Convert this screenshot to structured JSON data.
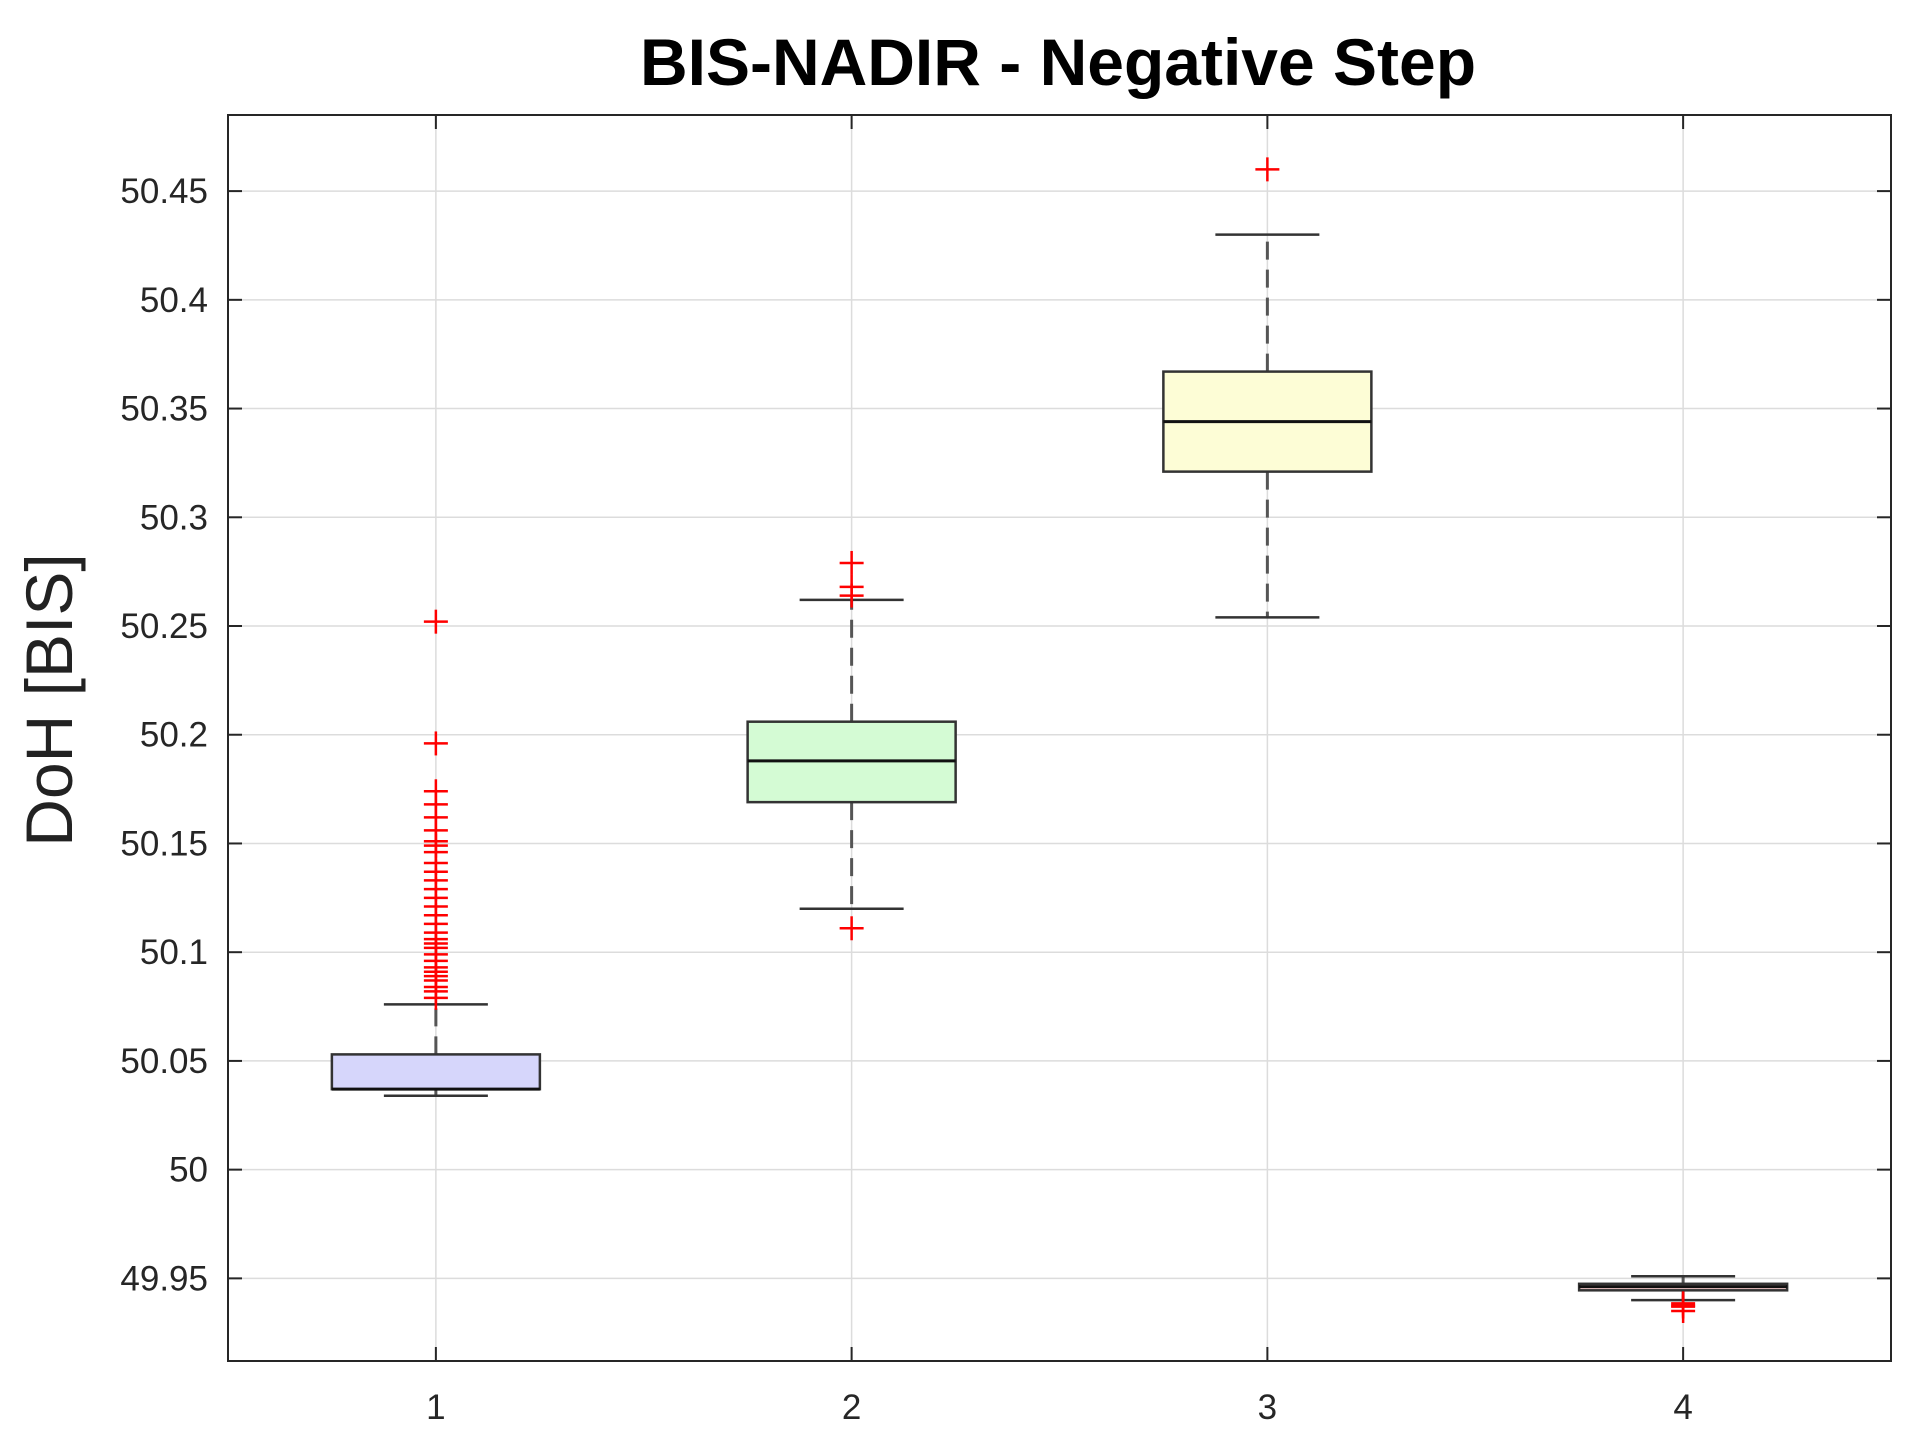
{
  "chart_data": {
    "type": "box",
    "title": "BIS-NADIR - Negative Step",
    "xlabel": "",
    "ylabel": "DoH [BIS]",
    "categories": [
      "1",
      "2",
      "3",
      "4"
    ],
    "ylim": [
      49.912,
      50.485
    ],
    "yticks": [
      49.95,
      50,
      50.05,
      50.1,
      50.15,
      50.2,
      50.25,
      50.3,
      50.35,
      50.4,
      50.45
    ],
    "ytick_labels": [
      "49.95",
      "50",
      "50.05",
      "50.1",
      "50.15",
      "50.2",
      "50.25",
      "50.3",
      "50.35",
      "50.4",
      "50.45"
    ],
    "grid": true,
    "boxes": [
      {
        "category": "1",
        "fill": "#d6d6fb",
        "q1": 50.037,
        "median": 50.037,
        "q3": 50.053,
        "whisker_low": 50.034,
        "whisker_high": 50.076,
        "outliers": [
          50.252,
          50.196,
          50.174,
          50.168,
          50.162,
          50.156,
          50.151,
          50.149,
          50.146,
          50.141,
          50.137,
          50.133,
          50.129,
          50.125,
          50.121,
          50.117,
          50.113,
          50.109,
          50.106,
          50.104,
          50.102,
          50.099,
          50.096,
          50.093,
          50.091,
          50.089,
          50.087,
          50.084,
          50.082,
          50.079
        ]
      },
      {
        "category": "2",
        "fill": "#d4fbd4",
        "q1": 50.169,
        "median": 50.188,
        "q3": 50.206,
        "whisker_low": 50.12,
        "whisker_high": 50.262,
        "outliers": [
          50.279,
          50.268,
          50.264,
          50.111
        ]
      },
      {
        "category": "3",
        "fill": "#fdfdd6",
        "q1": 50.321,
        "median": 50.344,
        "q3": 50.367,
        "whisker_low": 50.254,
        "whisker_high": 50.43,
        "outliers": [
          50.46
        ]
      },
      {
        "category": "4",
        "fill": "#f2c8c8",
        "q1": 49.9445,
        "median": 49.9462,
        "q3": 49.9475,
        "whisker_low": 49.94,
        "whisker_high": 49.951,
        "outliers": [
          49.9385,
          49.9375,
          49.937,
          49.935
        ]
      }
    ],
    "outlier_color": "#ff0000",
    "whisker_style": "dashed"
  }
}
